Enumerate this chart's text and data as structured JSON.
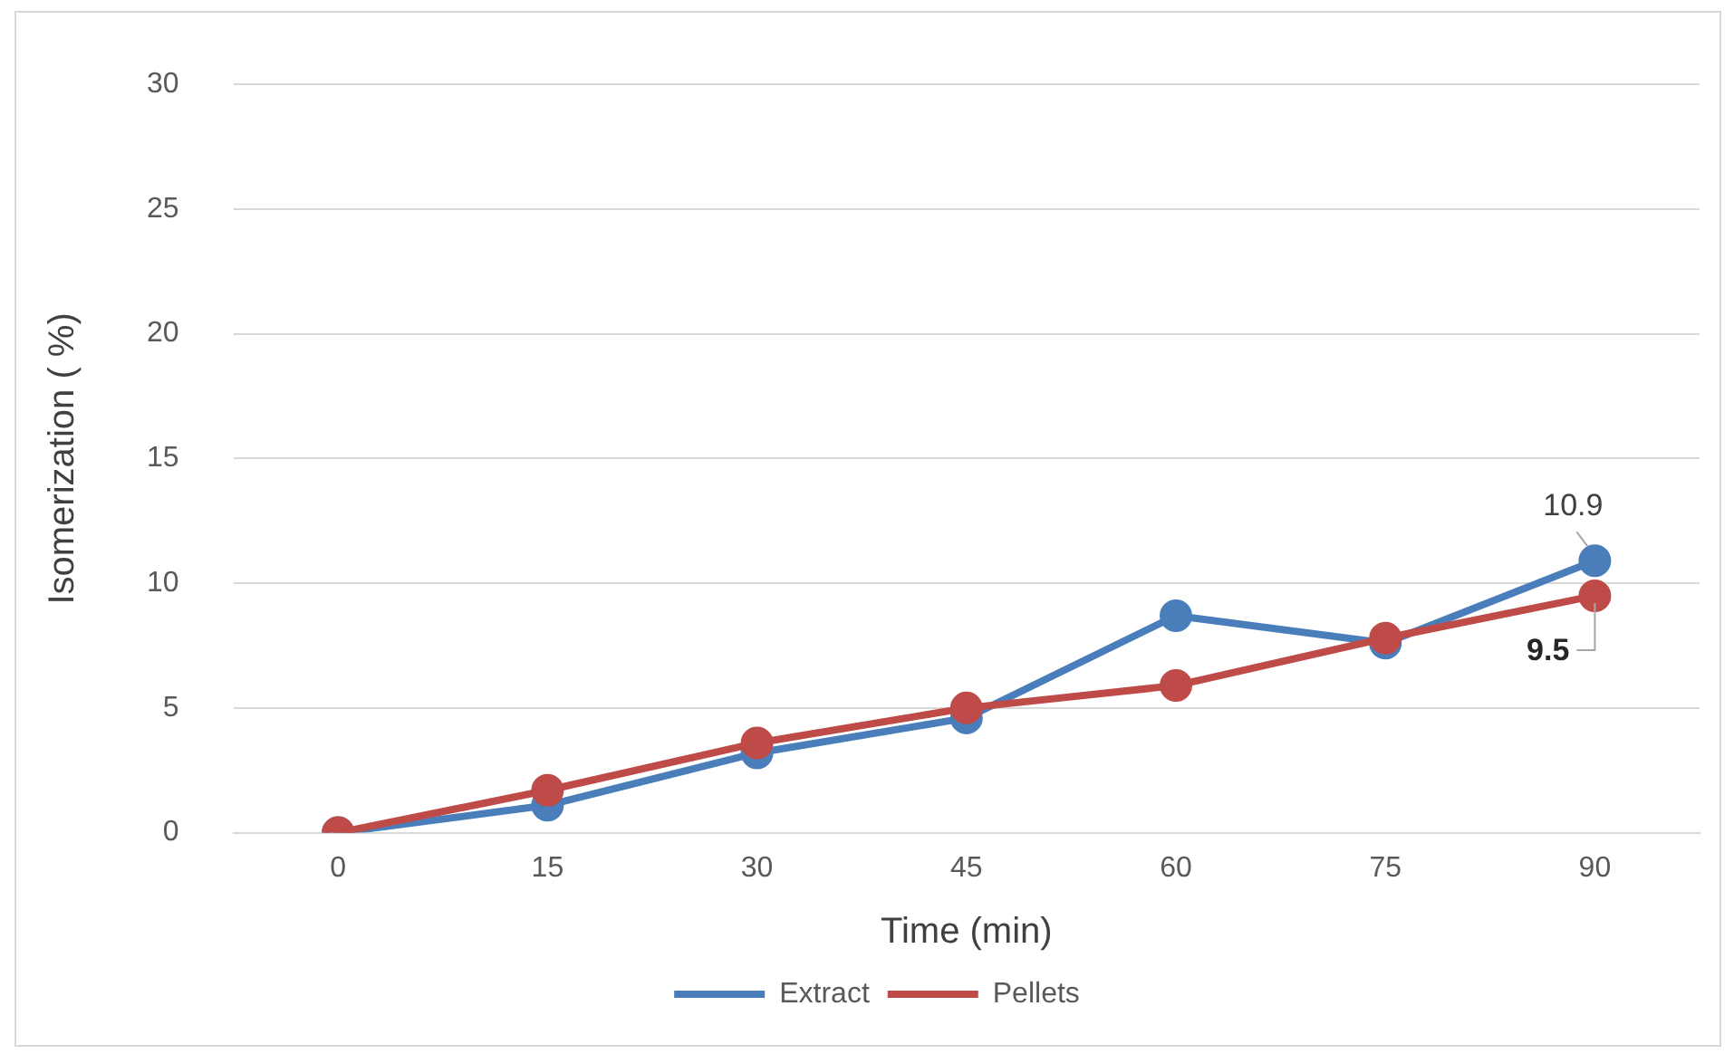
{
  "chart_data": {
    "type": "line",
    "xlabel": "Time (min)",
    "ylabel": "Isomerization ( %)",
    "categories": [
      "0",
      "15",
      "30",
      "45",
      "60",
      "75",
      "90"
    ],
    "series": [
      {
        "name": "Extract",
        "color": "#4a7ebb",
        "values": [
          0,
          1.1,
          3.2,
          4.6,
          8.7,
          7.6,
          10.9
        ],
        "value_labels": [
          null,
          null,
          null,
          null,
          null,
          null,
          "10.9"
        ]
      },
      {
        "name": "Pellets",
        "color": "#be4b48",
        "values": [
          0,
          1.7,
          3.6,
          5.0,
          5.9,
          7.8,
          9.5
        ],
        "value_labels": [
          null,
          null,
          null,
          null,
          null,
          null,
          "9.5"
        ]
      }
    ],
    "ylim": [
      0,
      30
    ],
    "yticks": [
      0,
      5,
      10,
      15,
      20,
      25,
      30
    ],
    "grid": "y",
    "legend": "bottom",
    "marker": "circle",
    "line_style": "solid"
  }
}
